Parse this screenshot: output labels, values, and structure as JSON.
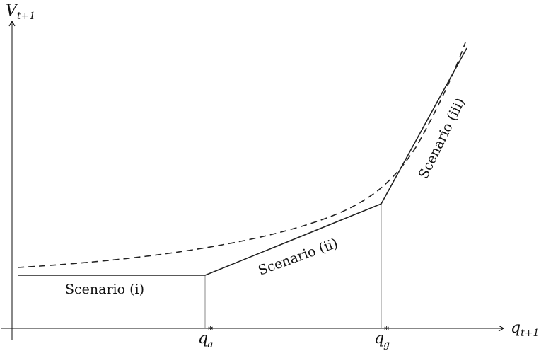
{
  "axes": {
    "y_label": {
      "main": "V",
      "sub": "t+1"
    },
    "x_label": {
      "main": "q",
      "sub": "t+1"
    }
  },
  "thresholds": {
    "qa": {
      "main": "q",
      "sup": "*",
      "sub": "a"
    },
    "qg": {
      "main": "q",
      "sup": "*",
      "sub": "g"
    }
  },
  "scenarios": [
    {
      "label": "Scenario (i)"
    },
    {
      "label": "Scenario (ii)"
    },
    {
      "label": "Scenario (iii)"
    }
  ],
  "colors": {
    "lines": "#222222",
    "guides": "#888888",
    "text": "#111111"
  }
}
